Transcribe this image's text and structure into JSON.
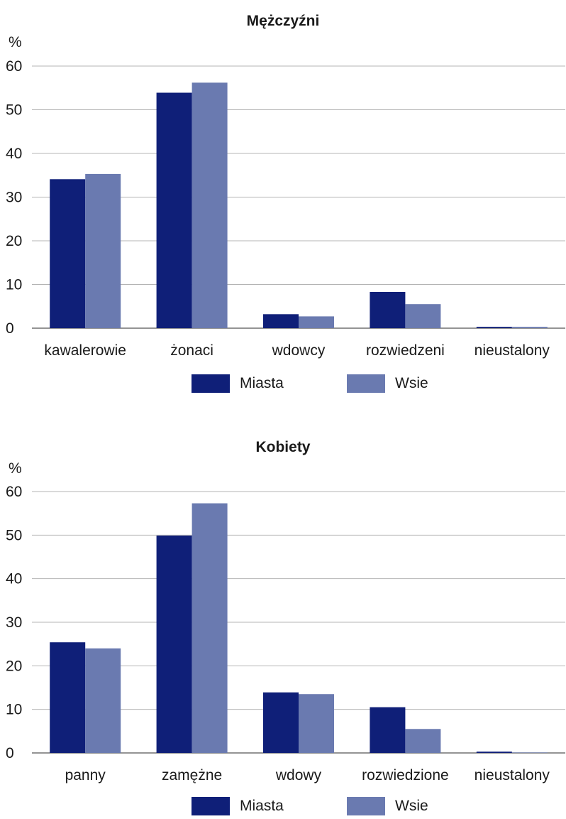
{
  "colors": {
    "miasta": "#0f1f78",
    "wsie": "#6a7ab0",
    "grid": "#b4b4b4",
    "axis": "#707070"
  },
  "chart_data": [
    {
      "type": "bar",
      "title": "Mężczyźni",
      "ylabel": "%",
      "xlabel": "",
      "ylim": [
        0,
        60
      ],
      "yticks": [
        "0",
        "10",
        "20",
        "30",
        "40",
        "50",
        "60"
      ],
      "grid": true,
      "legend_position": "bottom",
      "categories": [
        "kawalerowie",
        "żonaci",
        "wdowcy",
        "rozwiedzeni",
        "nieustalony"
      ],
      "series": [
        {
          "name": "Miasta",
          "values": [
            34.1,
            53.9,
            3.2,
            8.3,
            0.3
          ]
        },
        {
          "name": "Wsie",
          "values": [
            35.3,
            56.2,
            2.7,
            5.5,
            0.3
          ]
        }
      ]
    },
    {
      "type": "bar",
      "title": "Kobiety",
      "ylabel": "%",
      "xlabel": "",
      "ylim": [
        0,
        60
      ],
      "yticks": [
        "0",
        "10",
        "20",
        "30",
        "40",
        "50",
        "60"
      ],
      "grid": true,
      "legend_position": "bottom",
      "categories": [
        "panny",
        "zamężne",
        "wdowy",
        "rozwiedzione",
        "nieustalony"
      ],
      "series": [
        {
          "name": "Miasta",
          "values": [
            25.4,
            49.9,
            13.9,
            10.5,
            0.3
          ]
        },
        {
          "name": "Wsie",
          "values": [
            24.0,
            57.3,
            13.5,
            5.5,
            0.1
          ]
        }
      ]
    }
  ]
}
